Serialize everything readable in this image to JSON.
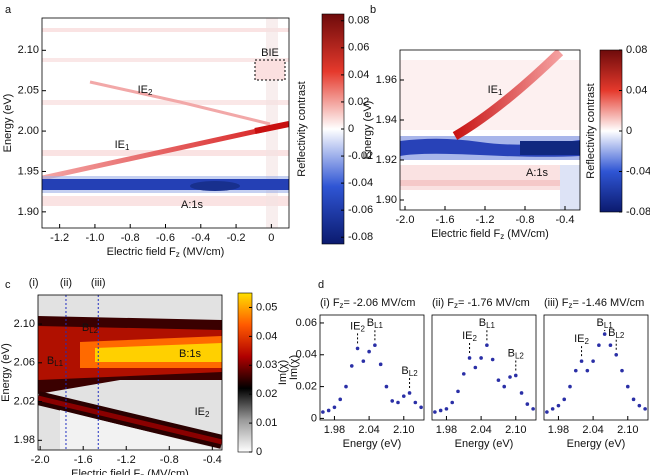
{
  "chart_data": [
    {
      "type": "heatmap",
      "panel": "a",
      "xlabel": [
        "Electric field F",
        {
          "sub": "z"
        },
        " (MV/cm)"
      ],
      "ylabel": "Energy (eV)",
      "xlim": [
        -1.3,
        0.1
      ],
      "ylim": [
        1.88,
        2.14
      ],
      "xticks": [
        -1.2,
        {
          "value": -1.0,
          "label": "-1.0"
        },
        -0.8,
        -0.6,
        -0.4,
        -0.2,
        0
      ],
      "yticks": [
        {
          "value": 1.9,
          "label": "1.90"
        },
        1.95,
        {
          "value": 2.0,
          "label": "2.00"
        },
        2.05,
        {
          "value": 2.1,
          "label": "2.10"
        }
      ],
      "colorbar": {
        "label": "Reflectivity contrast",
        "lim": [
          -0.085,
          0.085
        ],
        "ticks": [
          0.08,
          0.06,
          0.04,
          0.02,
          0,
          -0.02,
          -0.04,
          -0.06,
          -0.08
        ],
        "colors": [
          "#0b1a6e",
          "#2f55d4",
          "#ffffff",
          "#e5392c",
          "#6e0b0b"
        ]
      },
      "annotations": [
        {
          "text": [
            "BIE"
          ]
        },
        {
          "text": [
            "IE",
            {
              "sub": "2"
            }
          ]
        },
        {
          "text": [
            "IE",
            {
              "sub": "1"
            }
          ]
        },
        {
          "text": [
            "A:1s"
          ]
        }
      ]
    },
    {
      "type": "heatmap",
      "panel": "b",
      "xlabel": [
        "Electric field F",
        {
          "sub": "z"
        },
        " (MV/cm)"
      ],
      "ylabel": "Energy (eV)",
      "xlim": [
        -2.05,
        -0.25
      ],
      "ylim": [
        1.895,
        1.975
      ],
      "xticks": [
        {
          "value": -2.0,
          "label": "-2.0"
        },
        -1.6,
        -1.2,
        -0.8,
        -0.4
      ],
      "yticks": [
        {
          "value": 1.9,
          "label": "1.90"
        },
        1.92,
        1.94,
        1.96
      ],
      "colorbar": {
        "label": "Reflectivity contrast",
        "lim": [
          -0.08,
          0.08
        ],
        "ticks": [
          0.08,
          0.04,
          0,
          -0.04,
          -0.08
        ],
        "colors": [
          "#0b1a6e",
          "#2f55d4",
          "#ffffff",
          "#e5392c",
          "#6e0b0b"
        ]
      },
      "annotations": [
        {
          "text": [
            "IE",
            {
              "sub": "1"
            }
          ]
        },
        {
          "text": [
            "A:1s"
          ]
        }
      ]
    },
    {
      "type": "heatmap",
      "panel": "c",
      "xlabel": [
        "Electric field F",
        {
          "sub": "z"
        },
        " (MV/cm)"
      ],
      "ylabel": "Energy (eV)",
      "xlim": [
        -2.02,
        -0.31
      ],
      "ylim": [
        1.97,
        2.13
      ],
      "xticks": [
        {
          "value": -2.0,
          "label": "-2.0"
        },
        -1.6,
        -1.2,
        -0.8,
        -0.4
      ],
      "yticks": [
        1.98,
        2.02,
        2.06,
        {
          "value": 2.1,
          "label": "2.10"
        }
      ],
      "colorbar": {
        "label": "Im(χ)",
        "lim": [
          0,
          0.055
        ],
        "ticks": [
          0,
          0.01,
          0.02,
          0.03,
          0.04,
          0.05
        ],
        "colors": [
          "#ffffff",
          "#9a9a9a",
          "#000000",
          "#b00000",
          "#ff5a00",
          "#ffe000"
        ]
      },
      "annotations": [
        {
          "text": [
            "B",
            {
              "sub": "L2"
            }
          ]
        },
        {
          "text": [
            "B",
            {
              "sub": "L1"
            }
          ]
        },
        {
          "text": [
            "B:1s"
          ]
        },
        {
          "text": [
            "IE",
            {
              "sub": "2"
            }
          ]
        }
      ],
      "cuts": [
        {
          "label": "(i)",
          "field": -2.06
        },
        {
          "label": "(ii)",
          "field": -1.76
        },
        {
          "label": "(iii)",
          "field": -1.46
        }
      ]
    },
    {
      "type": "scatter",
      "panel": "d",
      "title": [
        "(i) F",
        {
          "sub": "z"
        },
        "= -2.06 MV/cm"
      ],
      "xlabel": "Energy (eV)",
      "ylabel": "Im(χ)",
      "xlim": [
        1.955,
        2.135
      ],
      "ylim": [
        -0.001,
        0.065
      ],
      "xticks": [
        1.98,
        2.04,
        {
          "value": 2.1,
          "label": "2.10"
        }
      ],
      "yticks": [
        0,
        0.02,
        0.04,
        0.06
      ],
      "x": [
        1.96,
        1.97,
        1.98,
        1.99,
        2.0,
        2.01,
        2.02,
        2.03,
        2.04,
        2.05,
        2.06,
        2.07,
        2.08,
        2.09,
        2.1,
        2.11,
        2.12,
        2.13
      ],
      "series": [
        {
          "color": "#2a2fa6",
          "values": [
            0.004,
            0.005,
            0.007,
            0.012,
            0.02,
            0.033,
            0.044,
            0.036,
            0.042,
            0.046,
            0.034,
            0.02,
            0.011,
            0.01,
            0.014,
            0.016,
            0.01,
            0.007
          ]
        }
      ],
      "peaks": [
        {
          "label": [
            "IE",
            {
              "sub": "2"
            }
          ],
          "energy": 2.02
        },
        {
          "label": [
            "B",
            {
              "sub": "L1"
            }
          ],
          "energy": 2.05
        },
        {
          "label": [
            "B",
            {
              "sub": "L2"
            }
          ],
          "energy": 2.11
        }
      ]
    },
    {
      "type": "scatter",
      "title": [
        "(ii) F",
        {
          "sub": "z"
        },
        "= -1.76 MV/cm"
      ],
      "xlabel": "Energy (eV)",
      "xlim": [
        1.955,
        2.135
      ],
      "ylim": [
        -0.001,
        0.065
      ],
      "xticks": [
        1.98,
        2.04,
        {
          "value": 2.1,
          "label": "2.10"
        }
      ],
      "x": [
        1.96,
        1.97,
        1.98,
        1.99,
        2.0,
        2.01,
        2.02,
        2.03,
        2.04,
        2.05,
        2.06,
        2.07,
        2.08,
        2.09,
        2.1,
        2.11,
        2.12,
        2.13
      ],
      "series": [
        {
          "color": "#2a2fa6",
          "values": [
            0.004,
            0.005,
            0.006,
            0.01,
            0.017,
            0.028,
            0.038,
            0.032,
            0.038,
            0.046,
            0.037,
            0.024,
            0.02,
            0.026,
            0.027,
            0.016,
            0.009,
            0.006
          ]
        }
      ],
      "peaks": [
        {
          "label": [
            "IE",
            {
              "sub": "2"
            }
          ],
          "energy": 2.02
        },
        {
          "label": [
            "B",
            {
              "sub": "L1"
            }
          ],
          "energy": 2.05
        },
        {
          "label": [
            "B",
            {
              "sub": "L2"
            }
          ],
          "energy": 2.1
        }
      ]
    },
    {
      "type": "scatter",
      "title": [
        "(iii) F",
        {
          "sub": "z"
        },
        "= -1.46 MV/cm"
      ],
      "xlabel": "Energy (eV)",
      "xlim": [
        1.955,
        2.135
      ],
      "ylim": [
        -0.001,
        0.065
      ],
      "xticks": [
        1.98,
        2.04,
        {
          "value": 2.1,
          "label": "2.10"
        }
      ],
      "x": [
        1.96,
        1.97,
        1.98,
        1.99,
        2.0,
        2.01,
        2.02,
        2.03,
        2.04,
        2.05,
        2.06,
        2.07,
        2.08,
        2.09,
        2.1,
        2.11,
        2.12,
        2.13
      ],
      "series": [
        {
          "color": "#2a2fa6",
          "values": [
            0.004,
            0.006,
            0.008,
            0.012,
            0.02,
            0.03,
            0.036,
            0.03,
            0.036,
            0.046,
            0.053,
            0.046,
            0.04,
            0.03,
            0.02,
            0.012,
            0.008,
            0.006
          ]
        }
      ],
      "peaks": [
        {
          "label": [
            "IE",
            {
              "sub": "2"
            }
          ],
          "energy": 2.02
        },
        {
          "label": [
            "B",
            {
              "sub": "L1"
            }
          ],
          "energy": 2.06
        },
        {
          "label": [
            "B",
            {
              "sub": "L2"
            }
          ],
          "energy": 2.08
        }
      ]
    }
  ]
}
